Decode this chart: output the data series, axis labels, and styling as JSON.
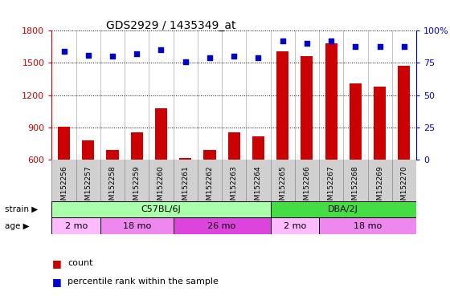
{
  "title": "GDS2929 / 1435349_at",
  "samples": [
    "GSM152256",
    "GSM152257",
    "GSM152258",
    "GSM152259",
    "GSM152260",
    "GSM152261",
    "GSM152262",
    "GSM152263",
    "GSM152264",
    "GSM152265",
    "GSM152266",
    "GSM152267",
    "GSM152268",
    "GSM152269",
    "GSM152270"
  ],
  "counts": [
    905,
    780,
    690,
    855,
    1080,
    615,
    685,
    850,
    815,
    1610,
    1560,
    1680,
    1310,
    1280,
    1470
  ],
  "percentiles": [
    84,
    81,
    80,
    82,
    85,
    76,
    79,
    80,
    79,
    92,
    90,
    92,
    88,
    88,
    88
  ],
  "ylim_left": [
    600,
    1800
  ],
  "ylim_right": [
    0,
    100
  ],
  "yticks_left": [
    600,
    900,
    1200,
    1500,
    1800
  ],
  "yticks_right": [
    0,
    25,
    50,
    75,
    100
  ],
  "bar_color": "#cc0000",
  "dot_color": "#0000cc",
  "strain_groups": [
    {
      "label": "C57BL/6J",
      "start": 0,
      "end": 9,
      "color": "#aaffaa"
    },
    {
      "label": "DBA/2J",
      "start": 9,
      "end": 15,
      "color": "#44dd44"
    }
  ],
  "age_groups": [
    {
      "label": "2 mo",
      "start": 0,
      "end": 2,
      "color": "#ffbbff"
    },
    {
      "label": "18 mo",
      "start": 2,
      "end": 5,
      "color": "#ee88ee"
    },
    {
      "label": "26 mo",
      "start": 5,
      "end": 9,
      "color": "#dd44dd"
    },
    {
      "label": "2 mo",
      "start": 9,
      "end": 11,
      "color": "#ffbbff"
    },
    {
      "label": "18 mo",
      "start": 11,
      "end": 15,
      "color": "#ee88ee"
    }
  ],
  "background_color": "#ffffff",
  "plot_bg_color": "#ffffff",
  "tick_label_color_left": "#cc0000",
  "tick_label_color_right": "#0000cc",
  "sample_band_color": "#d0d0d0",
  "bar_width": 0.5,
  "legend_items": [
    {
      "label": "count",
      "color": "#cc0000"
    },
    {
      "label": "percentile rank within the sample",
      "color": "#0000cc"
    }
  ]
}
